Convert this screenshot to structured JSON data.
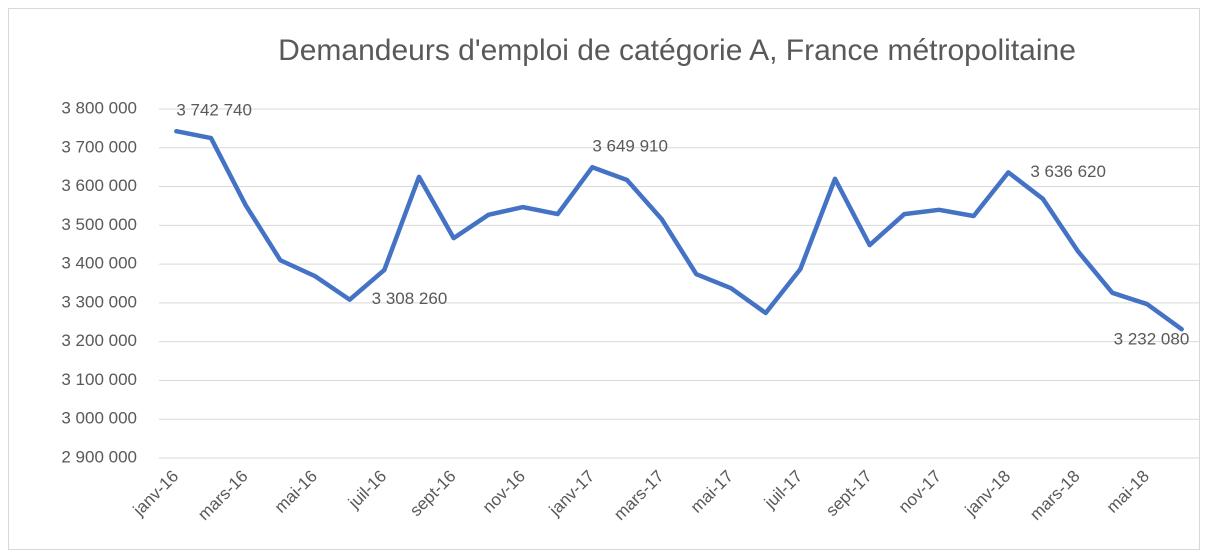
{
  "chart_data": {
    "type": "line",
    "title": "Demandeurs d'emploi de catégorie A, France métropolitaine",
    "categories": [
      "janv-16",
      null,
      "mars-16",
      null,
      "mai-16",
      null,
      "juil-16",
      null,
      "sept-16",
      null,
      "nov-16",
      null,
      "janv-17",
      null,
      "mars-17",
      null,
      "mai-17",
      null,
      "juil-17",
      null,
      "sept-17",
      null,
      "nov-17",
      null,
      "janv-18",
      null,
      "mars-18",
      null,
      "mai-18",
      null
    ],
    "series": [
      {
        "name": "Demandeurs d'emploi",
        "color": "#4472c4",
        "values": [
          3742740,
          3725000,
          3552000,
          3410000,
          3369000,
          3308260,
          3385000,
          3625000,
          3467000,
          3527000,
          3547000,
          3529000,
          3649910,
          3617000,
          3516000,
          3374000,
          3338000,
          3274000,
          3387000,
          3620000,
          3449000,
          3529000,
          3540000,
          3524000,
          3636620,
          3568000,
          3434000,
          3326000,
          3297000,
          3232080
        ],
        "value_labels": [
          "3 742 740",
          null,
          null,
          null,
          null,
          "3 308 260",
          null,
          null,
          null,
          null,
          null,
          null,
          "3 649 910",
          null,
          null,
          null,
          null,
          null,
          null,
          null,
          null,
          null,
          null,
          null,
          "3 636 620",
          null,
          null,
          null,
          null,
          "3 232 080"
        ]
      }
    ],
    "ylim": [
      2900000,
      3800000
    ],
    "yticks": [
      {
        "value": 2900000,
        "label": "2 900 000"
      },
      {
        "value": 3000000,
        "label": "3 000 000"
      },
      {
        "value": 3100000,
        "label": "3 100 000"
      },
      {
        "value": 3200000,
        "label": "3 200 000"
      },
      {
        "value": 3300000,
        "label": "3 300 000"
      },
      {
        "value": 3400000,
        "label": "3 400 000"
      },
      {
        "value": 3500000,
        "label": "3 500 000"
      },
      {
        "value": 3600000,
        "label": "3 600 000"
      },
      {
        "value": 3700000,
        "label": "3 700 000"
      },
      {
        "value": 3800000,
        "label": "3 800 000"
      }
    ],
    "grid": true
  }
}
